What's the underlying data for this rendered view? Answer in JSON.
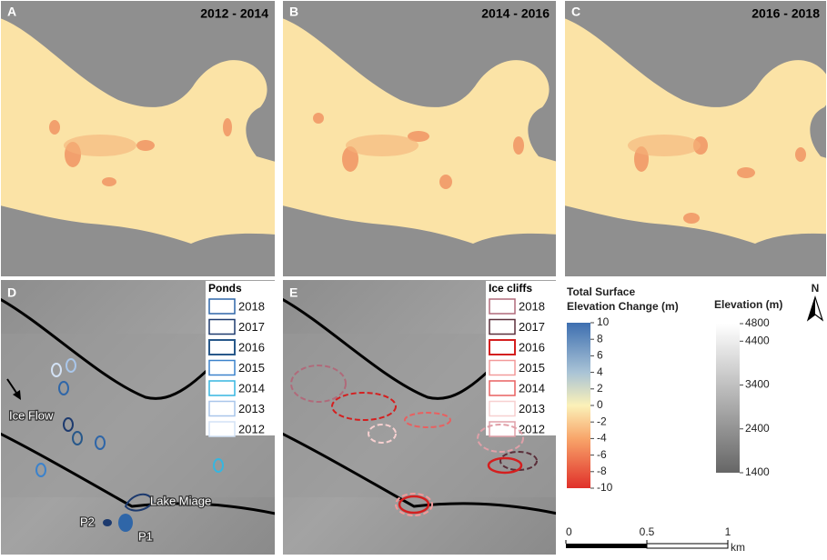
{
  "panels": [
    {
      "letter": "A",
      "period": "2012 - 2014"
    },
    {
      "letter": "B",
      "period": "2014 - 2016"
    },
    {
      "letter": "C",
      "period": "2016 - 2018"
    },
    {
      "letter": "D"
    },
    {
      "letter": "E"
    }
  ],
  "ponds_legend": {
    "title": "Ponds",
    "years": [
      "2018",
      "2017",
      "2016",
      "2015",
      "2014",
      "2013",
      "2012"
    ],
    "colors": [
      "#2f66a8",
      "#1d3a6e",
      "#28588a",
      "#3b82cc",
      "#36b6e0",
      "#a9c6ea",
      "#d3e2f5"
    ]
  },
  "cliffs_legend": {
    "title": "Ice cliffs",
    "years": [
      "2018",
      "2017",
      "2016",
      "2015",
      "2014",
      "2013",
      "2012"
    ],
    "colors": [
      "#b06a7a",
      "#5a2f3a",
      "#d41f1f",
      "#f29a9a",
      "#e86060",
      "#f7d0d0",
      "#e0a0a8"
    ]
  },
  "map_labels": {
    "ice_flow": "Ice Flow",
    "lake": "Lake Miage",
    "p2": "P2",
    "p1": "P1"
  },
  "elevation_change_colorbar": {
    "title_lines": [
      "Total Surface",
      "Elevation Change (m)"
    ],
    "lim": [
      -10,
      10
    ],
    "ticks": [
      10,
      8,
      6,
      4,
      2,
      0,
      -2,
      -4,
      -6,
      -8,
      -10
    ]
  },
  "elevation_colorbar": {
    "title": "Elevation (m)",
    "lim": [
      1400,
      4800
    ],
    "ticks": [
      4800,
      4400,
      3400,
      2400,
      1400
    ]
  },
  "north": "N",
  "scale_bar": {
    "lim": [
      0,
      1
    ],
    "ticks": [
      0,
      0.5,
      1
    ],
    "unit": "km"
  }
}
